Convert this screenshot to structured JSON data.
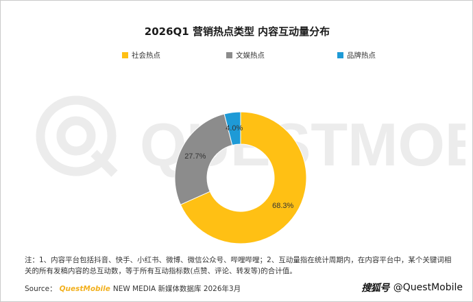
{
  "title": "2026Q1 营销热点类型 内容互动量分布",
  "legend": [
    {
      "label": "社会热点",
      "color": "#FFC014"
    },
    {
      "label": "文娱热点",
      "color": "#8C8C8C"
    },
    {
      "label": "品牌热点",
      "color": "#1E9AD6"
    }
  ],
  "watermark": {
    "text": "QUESTMOBILE",
    "color": "#ececec"
  },
  "chart_data": {
    "type": "pie",
    "variant": "donut",
    "title": "2026Q1 营销热点类型 内容互动量分布",
    "categories": [
      "社会热点",
      "文娱热点",
      "品牌热点"
    ],
    "values": [
      68.3,
      27.7,
      4.0
    ],
    "labels": [
      "68.3%",
      "27.7%",
      "4.0%"
    ],
    "colors": [
      "#FFC014",
      "#8C8C8C",
      "#1E9AD6"
    ],
    "legend_position": "top"
  },
  "note": "注：1、内容平台包括抖音、快手、小红书、微博、微信公众号、哔哩哔哩；2、互动量指在统计周期内，在内容平台中，某个关键词相关的所有发稿内容的总互动数，等于所有互动指标数(点赞、评论、转发等)的合计值。",
  "source": {
    "label": "Source：",
    "brand": "QuestMobile",
    "rest": "NEW MEDIA 新媒体数据库 2026年3月"
  },
  "credit": {
    "logo": "搜狐号",
    "handle": "@QuestMobile"
  }
}
